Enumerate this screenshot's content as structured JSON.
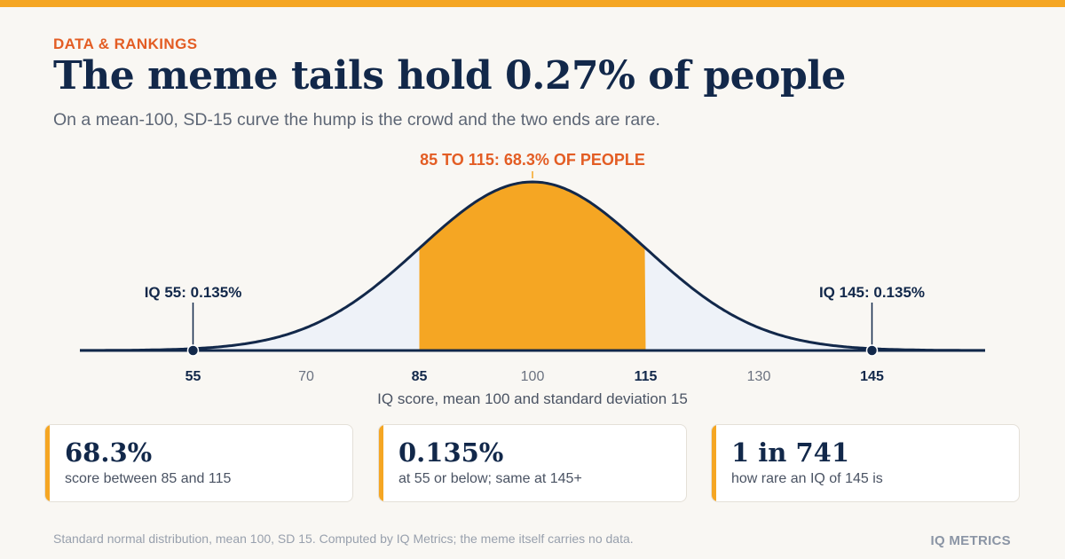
{
  "header": {
    "eyebrow": "DATA & RANKINGS",
    "title": "The meme tails hold 0.27% of people",
    "subtitle": "On a mean-100, SD-15 curve the hump is the crowd and the two ends are rare."
  },
  "colors": {
    "accent": "#f5a623",
    "eyebrow": "#e35d24",
    "navy": "#12284a",
    "tail_fill": "#eef2f8",
    "background": "#f9f7f3"
  },
  "chart_data": {
    "type": "area",
    "distribution": "normal",
    "mean": 100,
    "sd": 15,
    "xlim": [
      40,
      160
    ],
    "xlabel": "IQ score, mean 100 and standard deviation 15",
    "ticks": [
      {
        "value": 55,
        "label": "55",
        "bold": true
      },
      {
        "value": 70,
        "label": "70",
        "bold": false
      },
      {
        "value": 85,
        "label": "85",
        "bold": true
      },
      {
        "value": 100,
        "label": "100",
        "bold": false
      },
      {
        "value": 115,
        "label": "115",
        "bold": true
      },
      {
        "value": 130,
        "label": "130",
        "bold": false
      },
      {
        "value": 145,
        "label": "145",
        "bold": true
      }
    ],
    "highlight": {
      "from": 85,
      "to": 115,
      "label": "85 TO 115: 68.3% OF PEOPLE",
      "percent": 68.3
    },
    "markers": [
      {
        "value": 55,
        "label": "IQ 55: 0.135%",
        "percent": 0.135
      },
      {
        "value": 145,
        "label": "IQ 145: 0.135%",
        "percent": 0.135
      }
    ]
  },
  "stats": [
    {
      "value": "68.3%",
      "label": "score between 85 and 115"
    },
    {
      "value": "0.135%",
      "label": "at 55 or below; same at 145+"
    },
    {
      "value": "1 in 741",
      "label": "how rare an IQ of 145 is"
    }
  ],
  "footer": {
    "note": "Standard normal distribution, mean 100, SD 15. Computed by IQ Metrics; the meme itself carries no data.",
    "brand": "IQ METRICS"
  }
}
